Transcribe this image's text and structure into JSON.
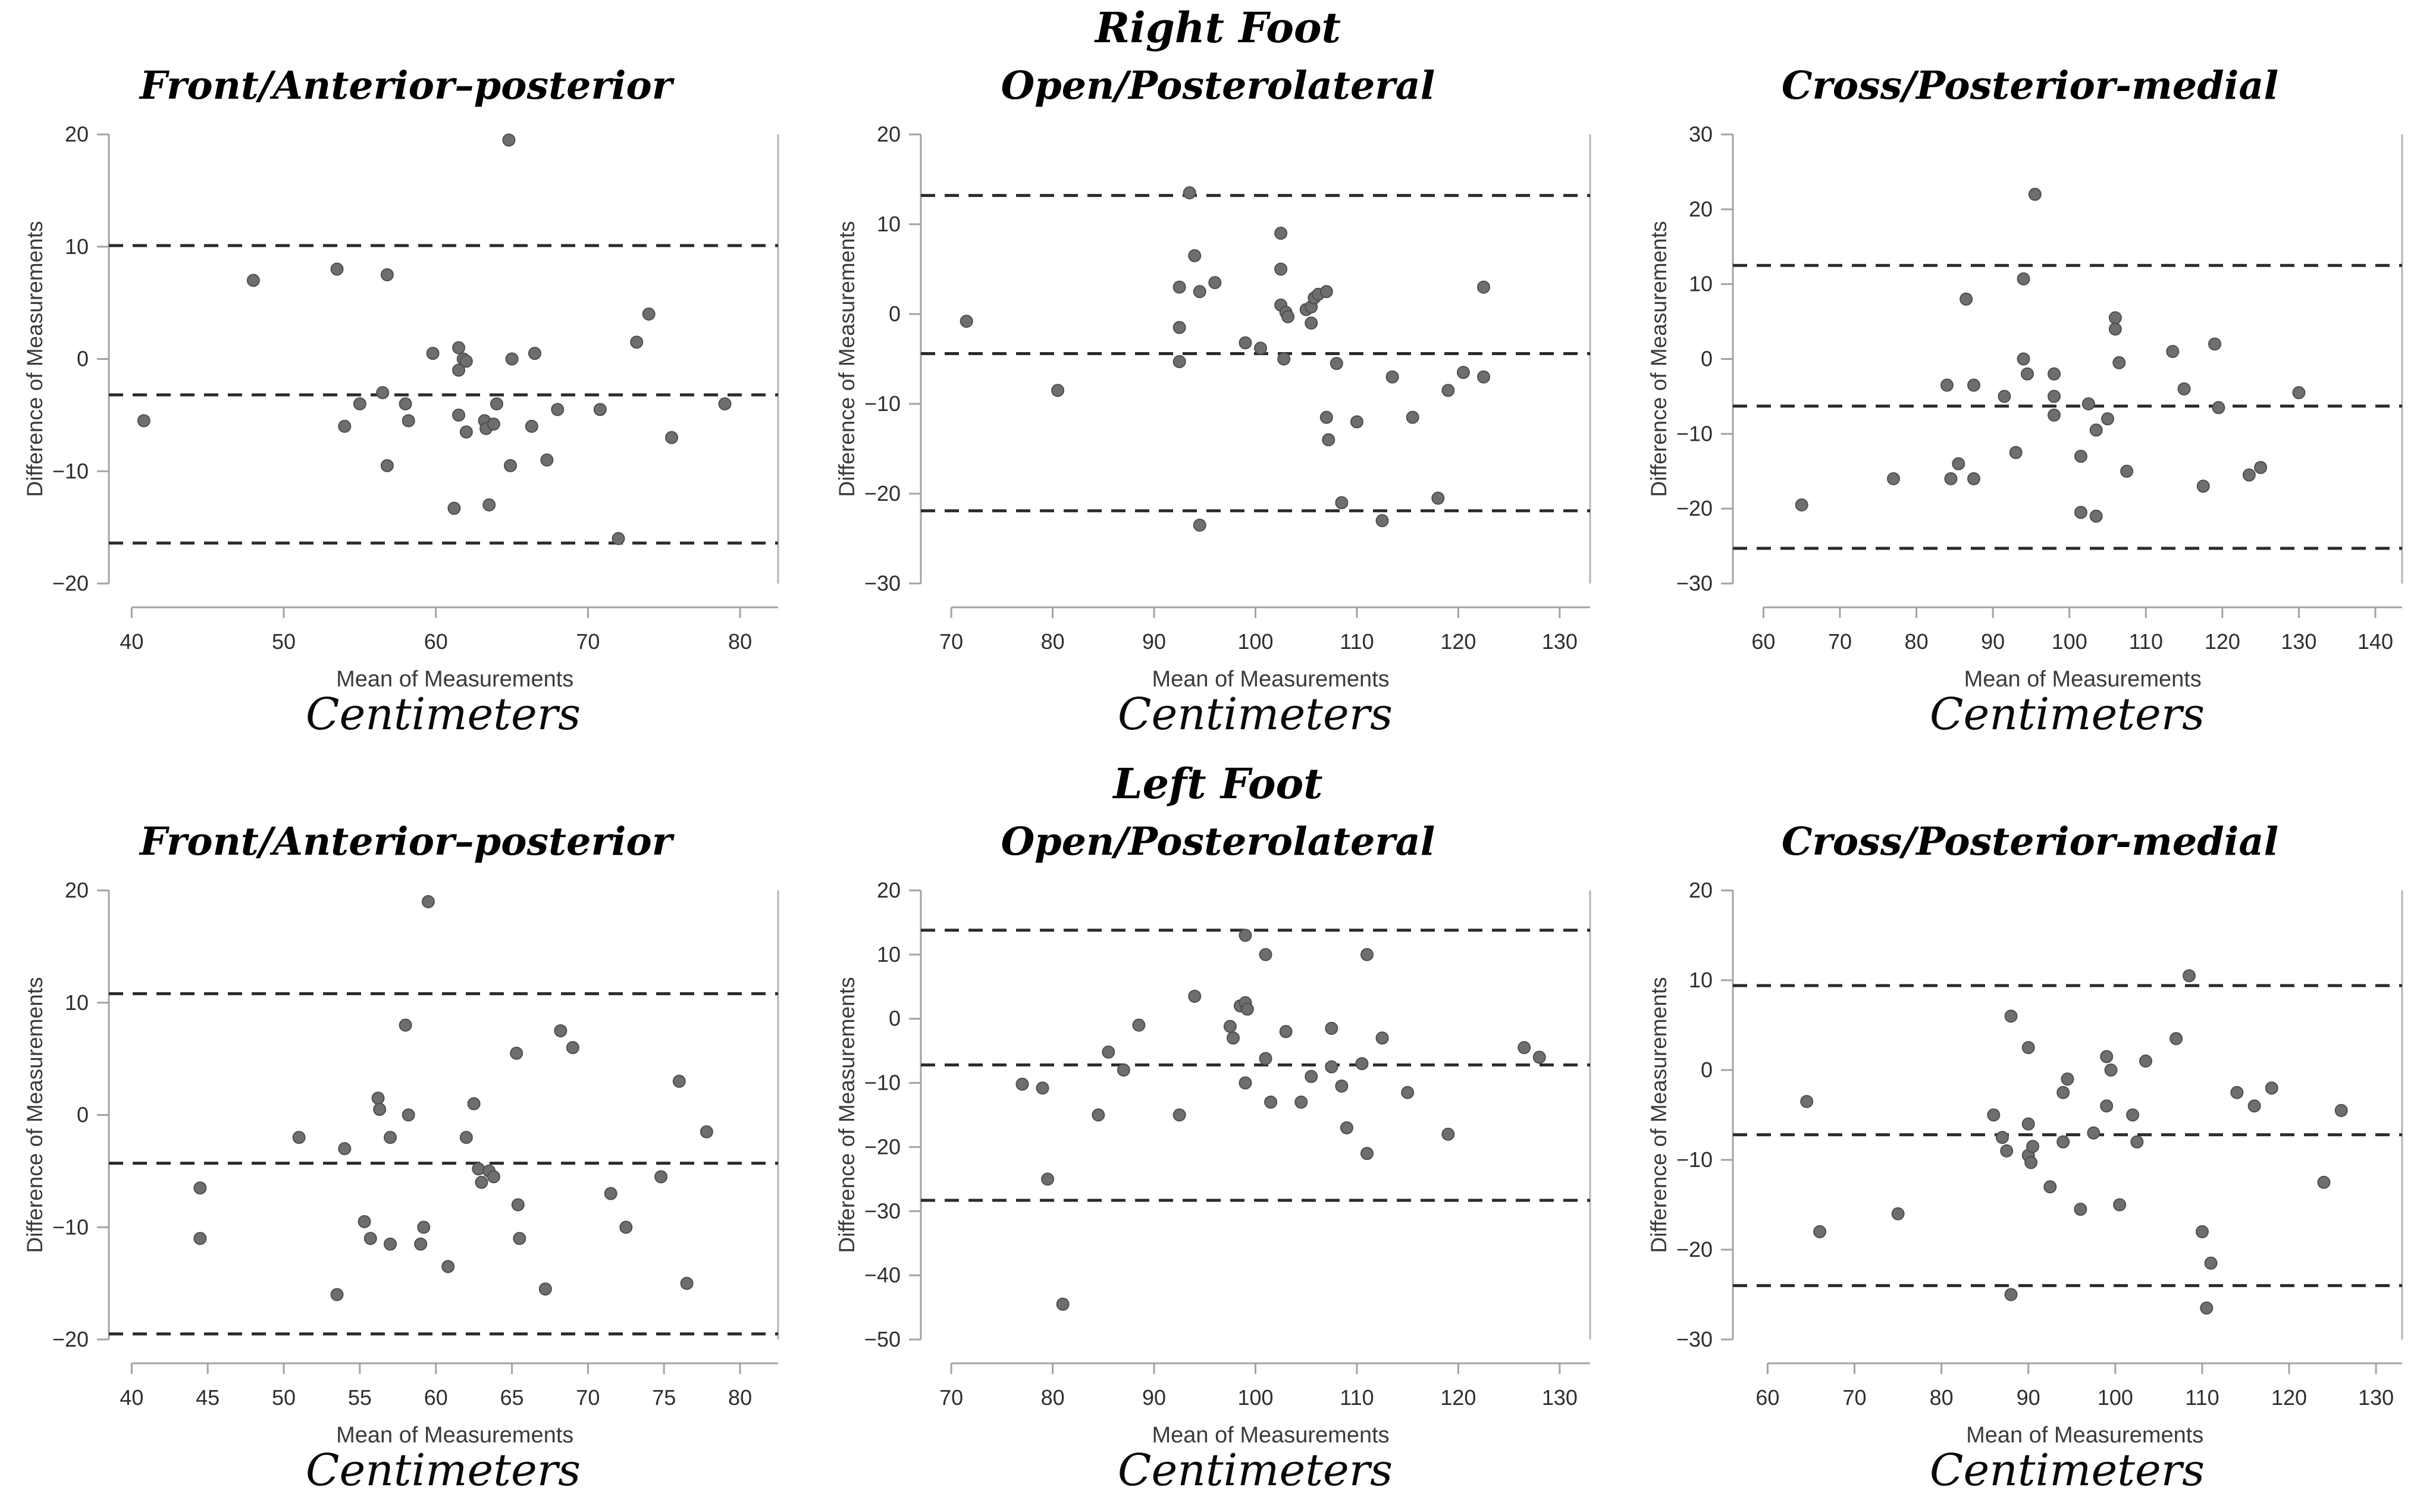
{
  "figure": {
    "row_headers": [
      {
        "label": "Right Foot"
      },
      {
        "label": "Left Foot"
      }
    ]
  },
  "labels": {
    "x_axis": "Mean of Measurements",
    "y_axis": "Difference of Measurements",
    "caption": "Centimeters"
  },
  "colors": {
    "background": "#ffffff",
    "title_text": "#000000",
    "axis_line": "#a3a3a3",
    "right_border": "#b5b5b5",
    "tick_text": "#2e2e2e",
    "axis_text": "#3a3a3a",
    "dashed_line": "#2b2b2b",
    "point_fill": "#6e6e6e",
    "point_stroke": "#4f4f4f"
  },
  "chart_data": [
    {
      "type": "scatter",
      "row": 0,
      "col": 0,
      "foot": "Right Foot",
      "title": "Front/Anterior–posterior",
      "xlabel": "Mean of Measurements",
      "ylabel": "Difference of Measurements",
      "caption": "Centimeters",
      "xlim": [
        38.5,
        82.5
      ],
      "xticks": [
        40,
        50,
        60,
        70,
        80
      ],
      "ylim": [
        -20,
        20
      ],
      "yticks": [
        -20,
        -10,
        0,
        10,
        20
      ],
      "dashed_lines": {
        "upper_loa": 10.1,
        "mean_bias": -3.2,
        "lower_loa": -16.4
      },
      "points": [
        [
          40.8,
          -5.5
        ],
        [
          48,
          7
        ],
        [
          53.5,
          8
        ],
        [
          54,
          -6
        ],
        [
          55,
          -4
        ],
        [
          56.5,
          -3
        ],
        [
          56.8,
          7.5
        ],
        [
          56.8,
          -9.5
        ],
        [
          58,
          -4
        ],
        [
          58.2,
          -5.5
        ],
        [
          59.8,
          0.5
        ],
        [
          61.2,
          -13.3
        ],
        [
          61.5,
          1
        ],
        [
          61.5,
          -1
        ],
        [
          61.5,
          -5
        ],
        [
          61.8,
          0
        ],
        [
          62,
          -0.2
        ],
        [
          62,
          -6.5
        ],
        [
          63.2,
          -5.5
        ],
        [
          63.3,
          -6.2
        ],
        [
          63.5,
          -13
        ],
        [
          63.8,
          -5.8
        ],
        [
          64,
          -4
        ],
        [
          64.8,
          19.5
        ],
        [
          64.9,
          -9.5
        ],
        [
          65,
          0
        ],
        [
          66.3,
          -6
        ],
        [
          66.5,
          0.5
        ],
        [
          67.3,
          -9
        ],
        [
          68,
          -4.5
        ],
        [
          70.8,
          -4.5
        ],
        [
          72,
          -16
        ],
        [
          73.2,
          1.5
        ],
        [
          74,
          4
        ],
        [
          75.5,
          -7
        ],
        [
          79,
          -4
        ]
      ]
    },
    {
      "type": "scatter",
      "row": 0,
      "col": 1,
      "foot": "Right Foot",
      "title": "Open/Posterolateral",
      "xlabel": "Mean of Measurements",
      "ylabel": "Difference of Measurements",
      "caption": "Centimeters",
      "xlim": [
        67,
        133
      ],
      "xticks": [
        70,
        80,
        90,
        100,
        110,
        120,
        130
      ],
      "ylim": [
        -30,
        20
      ],
      "yticks": [
        -30,
        -20,
        -10,
        0,
        10,
        20
      ],
      "dashed_lines": {
        "upper_loa": 13.2,
        "mean_bias": -4.4,
        "lower_loa": -21.9
      },
      "points": [
        [
          71.5,
          -0.8
        ],
        [
          80.5,
          -8.5
        ],
        [
          92.5,
          3
        ],
        [
          92.5,
          -1.5
        ],
        [
          92.5,
          -5.3
        ],
        [
          93.5,
          13.5
        ],
        [
          94,
          6.5
        ],
        [
          94.5,
          2.5
        ],
        [
          94.5,
          -23.5
        ],
        [
          96,
          3.5
        ],
        [
          99,
          -3.2
        ],
        [
          100.5,
          -3.8
        ],
        [
          102.5,
          9
        ],
        [
          102.5,
          5
        ],
        [
          102.5,
          1
        ],
        [
          103,
          0.2
        ],
        [
          103.2,
          -0.3
        ],
        [
          102.8,
          -5
        ],
        [
          105,
          0.5
        ],
        [
          105.5,
          0.8
        ],
        [
          105.8,
          1.8
        ],
        [
          106.2,
          2.2
        ],
        [
          105.5,
          -1
        ],
        [
          107,
          2.5
        ],
        [
          107,
          -11.5
        ],
        [
          107.2,
          -14
        ],
        [
          108,
          -5.5
        ],
        [
          108.5,
          -21
        ],
        [
          110,
          -12
        ],
        [
          112.5,
          -23
        ],
        [
          113.5,
          -7
        ],
        [
          115.5,
          -11.5
        ],
        [
          118,
          -20.5
        ],
        [
          119,
          -8.5
        ],
        [
          120.5,
          -6.5
        ],
        [
          122.5,
          3
        ],
        [
          122.5,
          -7
        ]
      ]
    },
    {
      "type": "scatter",
      "row": 0,
      "col": 2,
      "foot": "Right Foot",
      "title": "Cross/Posterior-medial",
      "xlabel": "Mean of Measurements",
      "ylabel": "Difference of Measurements",
      "caption": "Centimeters",
      "xlim": [
        56,
        143.5
      ],
      "xticks": [
        60,
        70,
        80,
        90,
        100,
        110,
        120,
        130,
        140
      ],
      "ylim": [
        -30,
        30
      ],
      "yticks": [
        -30,
        -20,
        -10,
        0,
        10,
        20,
        30
      ],
      "dashed_lines": {
        "upper_loa": 12.5,
        "mean_bias": -6.3,
        "lower_loa": -25.3
      },
      "points": [
        [
          65,
          -19.5
        ],
        [
          77,
          -16
        ],
        [
          84,
          -3.5
        ],
        [
          84.5,
          -16
        ],
        [
          85.5,
          -14
        ],
        [
          86.5,
          8
        ],
        [
          87.5,
          -3.5
        ],
        [
          87.5,
          -16
        ],
        [
          91.5,
          -5
        ],
        [
          93,
          -12.5
        ],
        [
          94,
          10.7
        ],
        [
          94,
          0
        ],
        [
          94.5,
          -2
        ],
        [
          95.5,
          22
        ],
        [
          98,
          -2
        ],
        [
          98,
          -5
        ],
        [
          98,
          -7.5
        ],
        [
          101.5,
          -13
        ],
        [
          101.5,
          -20.5
        ],
        [
          102.5,
          -6
        ],
        [
          103.5,
          -9.5
        ],
        [
          103.5,
          -21
        ],
        [
          105,
          -8
        ],
        [
          106,
          5.5
        ],
        [
          106,
          4
        ],
        [
          106.5,
          -0.5
        ],
        [
          107.5,
          -15
        ],
        [
          113.5,
          1
        ],
        [
          115,
          -4
        ],
        [
          117.5,
          -17
        ],
        [
          119,
          2
        ],
        [
          119.5,
          -6.5
        ],
        [
          123.5,
          -15.5
        ],
        [
          125,
          -14.5
        ],
        [
          130,
          -4.5
        ]
      ]
    },
    {
      "type": "scatter",
      "row": 1,
      "col": 0,
      "foot": "Left Foot",
      "title": "Front/Anterior–posterior",
      "xlabel": "Mean of Measurements",
      "ylabel": "Difference of Measurements",
      "caption": "Centimeters",
      "xlim": [
        38.5,
        82.5
      ],
      "xticks": [
        40,
        45,
        50,
        55,
        60,
        65,
        70,
        75,
        80
      ],
      "ylim": [
        -20,
        20
      ],
      "yticks": [
        -20,
        -10,
        0,
        10,
        20
      ],
      "dashed_lines": {
        "upper_loa": 10.8,
        "mean_bias": -4.3,
        "lower_loa": -19.5
      },
      "points": [
        [
          44.5,
          -6.5
        ],
        [
          44.5,
          -11
        ],
        [
          51,
          -2
        ],
        [
          53.5,
          -16
        ],
        [
          54,
          -3
        ],
        [
          55.3,
          -9.5
        ],
        [
          55.7,
          -11
        ],
        [
          56.2,
          1.5
        ],
        [
          56.3,
          0.5
        ],
        [
          57,
          -2
        ],
        [
          57,
          -11.5
        ],
        [
          58,
          8
        ],
        [
          58.2,
          0
        ],
        [
          59,
          -11.5
        ],
        [
          59.2,
          -10
        ],
        [
          59.5,
          19
        ],
        [
          60.8,
          -13.5
        ],
        [
          62,
          -2
        ],
        [
          62.5,
          1
        ],
        [
          62.8,
          -4.8
        ],
        [
          63,
          -6
        ],
        [
          63.5,
          -5
        ],
        [
          63.8,
          -5.5
        ],
        [
          65.3,
          5.5
        ],
        [
          65.4,
          -8
        ],
        [
          65.5,
          -11
        ],
        [
          67.2,
          -15.5
        ],
        [
          68.2,
          7.5
        ],
        [
          69,
          6
        ],
        [
          71.5,
          -7
        ],
        [
          72.5,
          -10
        ],
        [
          74.8,
          -5.5
        ],
        [
          76,
          3
        ],
        [
          76.5,
          -15
        ],
        [
          77.8,
          -1.5
        ]
      ]
    },
    {
      "type": "scatter",
      "row": 1,
      "col": 1,
      "foot": "Left Foot",
      "title": "Open/Posterolateral",
      "xlabel": "Mean of Measurements",
      "ylabel": "Difference of Measurements",
      "caption": "Centimeters",
      "xlim": [
        67,
        133
      ],
      "xticks": [
        70,
        80,
        90,
        100,
        110,
        120,
        130
      ],
      "ylim": [
        -50,
        20
      ],
      "yticks": [
        -50,
        -40,
        -30,
        -20,
        -10,
        0,
        10,
        20
      ],
      "dashed_lines": {
        "upper_loa": 13.8,
        "mean_bias": -7.2,
        "lower_loa": -28.3
      },
      "points": [
        [
          77,
          -10.2
        ],
        [
          79,
          -10.8
        ],
        [
          79.5,
          -25
        ],
        [
          81,
          -44.5
        ],
        [
          84.5,
          -15
        ],
        [
          85.5,
          -5.2
        ],
        [
          87,
          -8
        ],
        [
          88.5,
          -1
        ],
        [
          92.5,
          -15
        ],
        [
          94,
          3.5
        ],
        [
          97.5,
          -1.2
        ],
        [
          97.8,
          -3
        ],
        [
          98.5,
          2
        ],
        [
          99,
          2.5
        ],
        [
          99.2,
          1.5
        ],
        [
          99,
          13
        ],
        [
          99,
          -10
        ],
        [
          101,
          10
        ],
        [
          101,
          -6.2
        ],
        [
          101.5,
          -13
        ],
        [
          103,
          -2
        ],
        [
          104.5,
          -13
        ],
        [
          105.5,
          -9
        ],
        [
          107.5,
          -1.5
        ],
        [
          107.5,
          -7.5
        ],
        [
          108.5,
          -10.5
        ],
        [
          109,
          -17
        ],
        [
          110.5,
          -7
        ],
        [
          111,
          10
        ],
        [
          111,
          -21
        ],
        [
          112.5,
          -3
        ],
        [
          115,
          -11.5
        ],
        [
          119,
          -18
        ],
        [
          126.5,
          -4.5
        ],
        [
          128,
          -6
        ]
      ]
    },
    {
      "type": "scatter",
      "row": 1,
      "col": 2,
      "foot": "Left Foot",
      "title": "Cross/Posterior-medial",
      "xlabel": "Mean of Measurements",
      "ylabel": "Difference of Measurements",
      "caption": "Centimeters",
      "xlim": [
        56,
        133
      ],
      "xticks": [
        60,
        70,
        80,
        90,
        100,
        110,
        120,
        130
      ],
      "ylim": [
        -30,
        20
      ],
      "yticks": [
        -30,
        -20,
        -10,
        0,
        10,
        20
      ],
      "dashed_lines": {
        "upper_loa": 9.4,
        "mean_bias": -7.2,
        "lower_loa": -24.0
      },
      "points": [
        [
          64.5,
          -3.5
        ],
        [
          66,
          -18
        ],
        [
          75,
          -16
        ],
        [
          86,
          -5
        ],
        [
          87,
          -7.5
        ],
        [
          87.5,
          -9
        ],
        [
          88,
          6
        ],
        [
          88,
          -25
        ],
        [
          90,
          2.5
        ],
        [
          90,
          -6
        ],
        [
          90,
          -9.5
        ],
        [
          90.3,
          -10.3
        ],
        [
          90.5,
          -8.5
        ],
        [
          92.5,
          -13
        ],
        [
          94,
          -2.5
        ],
        [
          94,
          -8
        ],
        [
          94.5,
          -1
        ],
        [
          96,
          -15.5
        ],
        [
          97.5,
          -7
        ],
        [
          99,
          1.5
        ],
        [
          99,
          -4
        ],
        [
          99.5,
          0
        ],
        [
          100.5,
          -15
        ],
        [
          102,
          -5
        ],
        [
          102.5,
          -8
        ],
        [
          103.5,
          1
        ],
        [
          107,
          3.5
        ],
        [
          108.5,
          10.5
        ],
        [
          110,
          -18
        ],
        [
          110.5,
          -26.5
        ],
        [
          111,
          -21.5
        ],
        [
          114,
          -2.5
        ],
        [
          116,
          -4
        ],
        [
          118,
          -2
        ],
        [
          124,
          -12.5
        ],
        [
          126,
          -4.5
        ]
      ]
    }
  ]
}
